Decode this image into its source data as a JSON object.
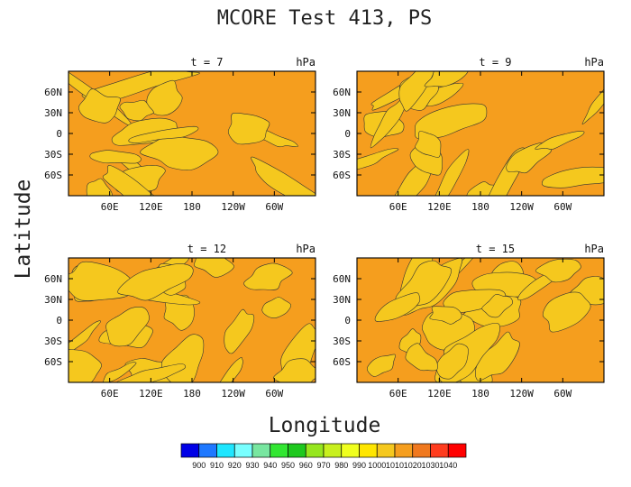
{
  "figure": {
    "title": "MCORE Test 413, PS",
    "xlabel": "Longitude",
    "ylabel": "Latitude"
  },
  "chart_data": {
    "type": "heatmap",
    "title": "MCORE Test 413, PS",
    "xlabel": "Longitude",
    "ylabel": "Latitude",
    "xticks": [
      "60E",
      "120E",
      "180",
      "120W",
      "60W"
    ],
    "yticks": [
      "60N",
      "30N",
      "0",
      "30S",
      "60S"
    ],
    "colorbar": {
      "levels": [
        900,
        910,
        920,
        930,
        940,
        950,
        960,
        970,
        980,
        990,
        1000,
        1010,
        1020,
        1030,
        1040
      ],
      "labels": [
        "900",
        "910",
        "920",
        "930",
        "940",
        "950",
        "960",
        "970",
        "980",
        "990",
        "1000",
        "1010",
        "1020",
        "1030",
        "1040"
      ],
      "colors": [
        "#0000e6",
        "#1e78ff",
        "#1ee6ff",
        "#78ffff",
        "#78e6a0",
        "#32e632",
        "#1ec81e",
        "#96e61e",
        "#c8f01e",
        "#f0ff1e",
        "#ffe600",
        "#f5c81e",
        "#f59e1e",
        "#f0781e",
        "#ff3c1e",
        "#ff0000"
      ]
    },
    "panels": [
      {
        "label": "t = 7",
        "units": "hPa",
        "fill_levels": [
          1000,
          1010
        ]
      },
      {
        "label": "t = 9",
        "units": "hPa",
        "fill_levels": [
          1000,
          1010
        ]
      },
      {
        "label": "t = 12",
        "units": "hPa",
        "fill_levels": [
          1000,
          1010
        ]
      },
      {
        "label": "t = 15",
        "units": "hPa",
        "fill_levels": [
          1000,
          1010
        ]
      }
    ],
    "grid": false,
    "legend": "bottom"
  }
}
